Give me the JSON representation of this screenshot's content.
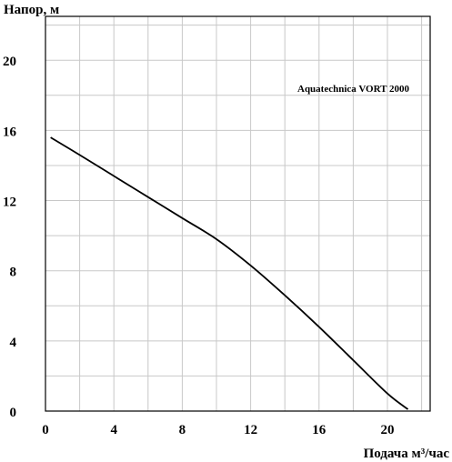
{
  "chart_data": {
    "type": "line",
    "ylabel": "Напор, м",
    "xlabel": "Подача  м³/час",
    "annotation": "Aquatechnica VORT 2000",
    "xlim": [
      0,
      22.5
    ],
    "ylim": [
      0,
      22.5
    ],
    "x_ticks": [
      0,
      4,
      8,
      12,
      16,
      20
    ],
    "y_ticks": [
      0,
      4,
      8,
      12,
      16,
      20
    ],
    "x_grid_step": 2,
    "y_grid_step": 2,
    "grid": true,
    "series": [
      {
        "x": [
          0.3,
          2,
          4,
          6,
          8,
          10,
          12,
          14,
          16,
          18,
          20,
          21.2
        ],
        "y": [
          15.6,
          14.6,
          13.4,
          12.2,
          11.0,
          9.8,
          8.3,
          6.6,
          4.8,
          2.9,
          1.0,
          0.1
        ],
        "color": "#000000"
      }
    ]
  }
}
